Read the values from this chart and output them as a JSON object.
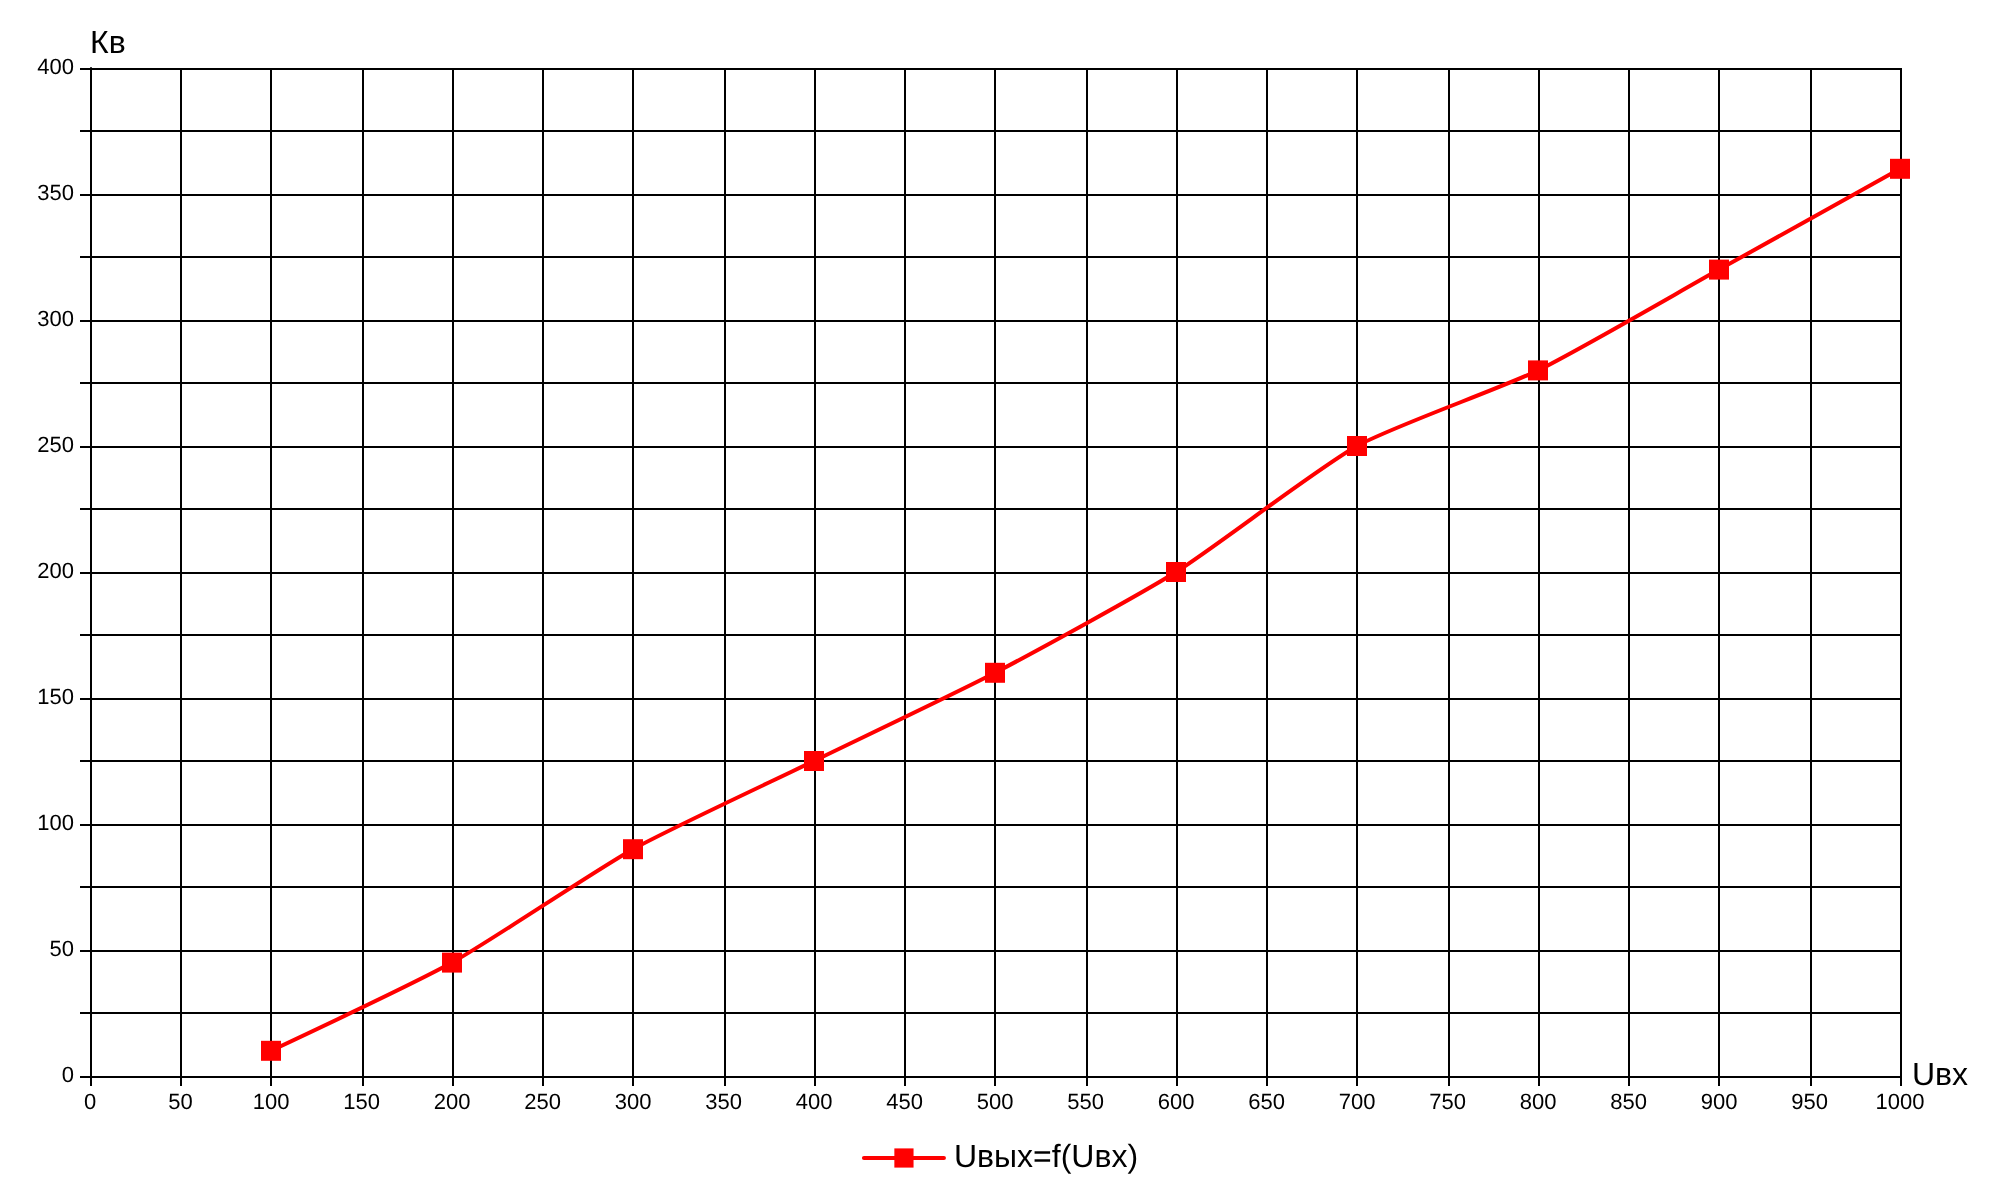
{
  "chart_data": {
    "type": "line",
    "xlabel": "Uвх",
    "ylabel": "Кв",
    "x": [
      100,
      200,
      300,
      400,
      500,
      600,
      700,
      800,
      900,
      1000
    ],
    "series": [
      {
        "name": "Uвых=f(Uвх)",
        "color": "#ff0000",
        "values": [
          10,
          45,
          90,
          125,
          160,
          200,
          250,
          280,
          320,
          360
        ]
      }
    ],
    "xlim": [
      0,
      1000
    ],
    "xticks": [
      0,
      50,
      100,
      150,
      200,
      250,
      300,
      350,
      400,
      450,
      500,
      550,
      600,
      650,
      700,
      750,
      800,
      850,
      900,
      950,
      1000
    ],
    "ylim": [
      0,
      400
    ],
    "yticks": [
      0,
      {
        "value": 25,
        "label": null
      },
      50,
      {
        "value": 75,
        "label": null
      },
      100,
      {
        "value": 125,
        "label": null
      },
      150,
      {
        "value": 175,
        "label": null
      },
      200,
      {
        "value": 225,
        "label": null
      },
      250,
      {
        "value": 275,
        "label": null
      },
      300,
      {
        "value": 325,
        "label": null
      },
      350,
      {
        "value": 375,
        "label": null
      },
      400
    ],
    "grid": true,
    "legend": "bottom",
    "marker": "square",
    "line_style": "solid"
  }
}
